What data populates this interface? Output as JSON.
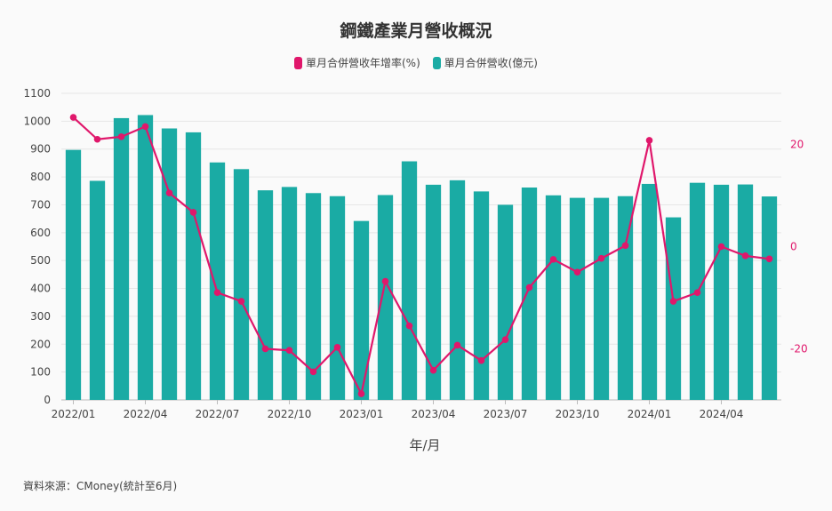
{
  "title": "鋼鐵產業月營收概況",
  "source_note": "資料來源：CMoney(統計至6月)",
  "colors": {
    "bar": "#1aaba4",
    "line": "#e0176b",
    "grid": "#e6e6e6",
    "right_axis_text": "#e0176b"
  },
  "chart_data": {
    "type": "bar",
    "title": "鋼鐵產業月營收概況",
    "xlabel": "年/月",
    "ylabel": "",
    "ylim": [
      0,
      1100
    ],
    "y2lim": [
      -30,
      30
    ],
    "yticks": [
      "0",
      "100",
      "200",
      "300",
      "400",
      "500",
      "600",
      "700",
      "800",
      "900",
      "1000",
      "1100"
    ],
    "y2ticks": [
      "-20",
      "0",
      "20"
    ],
    "grid": true,
    "legend_position": "top",
    "categories": [
      "2022/01",
      "2022/02",
      "2022/03",
      "2022/04",
      "2022/05",
      "2022/06",
      "2022/07",
      "2022/08",
      "2022/09",
      "2022/10",
      "2022/11",
      "2022/12",
      "2023/01",
      "2023/02",
      "2023/03",
      "2023/04",
      "2023/05",
      "2023/06",
      "2023/07",
      "2023/08",
      "2023/09",
      "2023/10",
      "2023/11",
      "2023/12",
      "2024/01",
      "2024/02",
      "2024/03",
      "2024/04",
      "2024/05",
      "2024/06"
    ],
    "x_tick_labels": [
      "2022/01",
      "",
      "",
      "2022/04",
      "",
      "",
      "2022/07",
      "",
      "",
      "2022/10",
      "",
      "",
      "2023/01",
      "",
      "",
      "2023/04",
      "",
      "",
      "2023/07",
      "",
      "",
      "2023/10",
      "",
      "",
      "2024/01",
      "",
      "",
      "2024/04",
      "",
      ""
    ],
    "series": [
      {
        "name": "單月合併營收年增率(%)",
        "type": "line",
        "axis": "right",
        "values": [
          25.3,
          21.0,
          21.5,
          23.5,
          10.5,
          6.7,
          -9.0,
          -10.7,
          -20.0,
          -20.3,
          -24.5,
          -19.7,
          -28.8,
          -6.8,
          -15.5,
          -24.2,
          -19.3,
          -22.3,
          -18.2,
          -8.0,
          -2.5,
          -5.0,
          -2.3,
          0.2,
          20.8,
          -10.7,
          -9.0,
          0.0,
          -1.8,
          -2.4
        ]
      },
      {
        "name": "單月合併營收(億元)",
        "type": "bar",
        "axis": "left",
        "values": [
          897,
          786,
          1011,
          1022,
          974,
          960,
          852,
          828,
          752,
          764,
          742,
          731,
          642,
          735,
          856,
          772,
          788,
          748,
          700,
          762,
          734,
          725,
          725,
          731,
          775,
          655,
          779,
          772,
          773,
          730
        ]
      }
    ]
  }
}
